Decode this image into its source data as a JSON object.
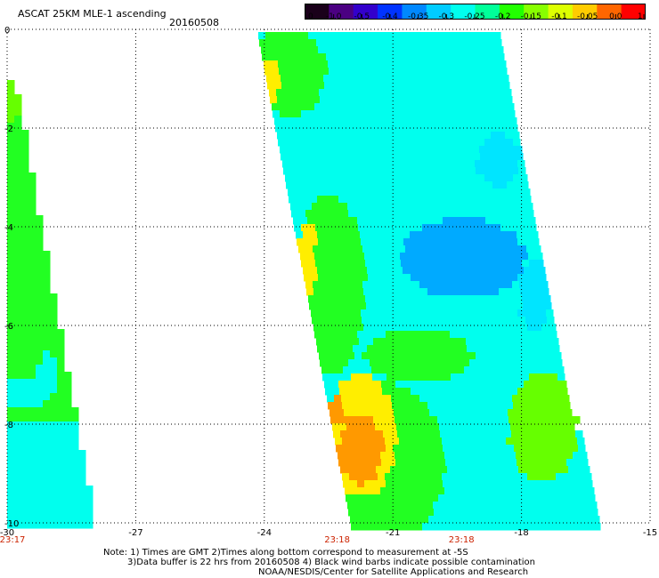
{
  "header": {
    "title": "ASCAT 25KM MLE-1 ascending",
    "date": "20160508"
  },
  "colorbar": {
    "labels": [
      "-3.0",
      "-1.0",
      "-0.5",
      "-0.4",
      "-0.35",
      "-0.3",
      "-0.25",
      "-0.2",
      "-0.15",
      "-0.1",
      "-0.05",
      "0.0",
      "1.0"
    ],
    "colors": [
      "#1a001a",
      "#4b0082",
      "#3300cc",
      "#0033ff",
      "#0088ff",
      "#00ccff",
      "#00ffee",
      "#00ff99",
      "#22ff00",
      "#88ff00",
      "#ddff00",
      "#ffcc00",
      "#ff6600",
      "#ff0000"
    ]
  },
  "axes": {
    "x_ticks": [
      "-30",
      "-27",
      "-24",
      "-21",
      "-18",
      "-15"
    ],
    "x_values": [
      -30,
      -27,
      -24,
      -21,
      -18,
      -15
    ],
    "y_ticks": [
      "0",
      "-2",
      "-4",
      "-6",
      "-8",
      "-10"
    ],
    "y_values": [
      0,
      -2,
      -4,
      -6,
      -8,
      -10
    ],
    "grid": "dotted"
  },
  "times": [
    {
      "label": "23:17",
      "lon": -30
    },
    {
      "label": "23:18",
      "lon": -22.3
    },
    {
      "label": "23:18",
      "lon": -19.4
    }
  ],
  "notes": {
    "line1": "Note: 1) Times are GMT 2)Times along bottom correspond to measurement at -5S",
    "line2": "3)Data buffer is 22 hrs from 20160508 4) Black wind barbs indicate possible contamination",
    "line3": "NOAA/NESDIS/Center for Satellite Applications and Research"
  },
  "palette": {
    "light_cyan": "#00ffee",
    "cyan": "#00e5ff",
    "blue": "#00aaff",
    "green": "#22ff22",
    "bright_green": "#66ff00",
    "yellow": "#ffee00",
    "orange": "#ff9900",
    "time_label": "#cc2200"
  }
}
